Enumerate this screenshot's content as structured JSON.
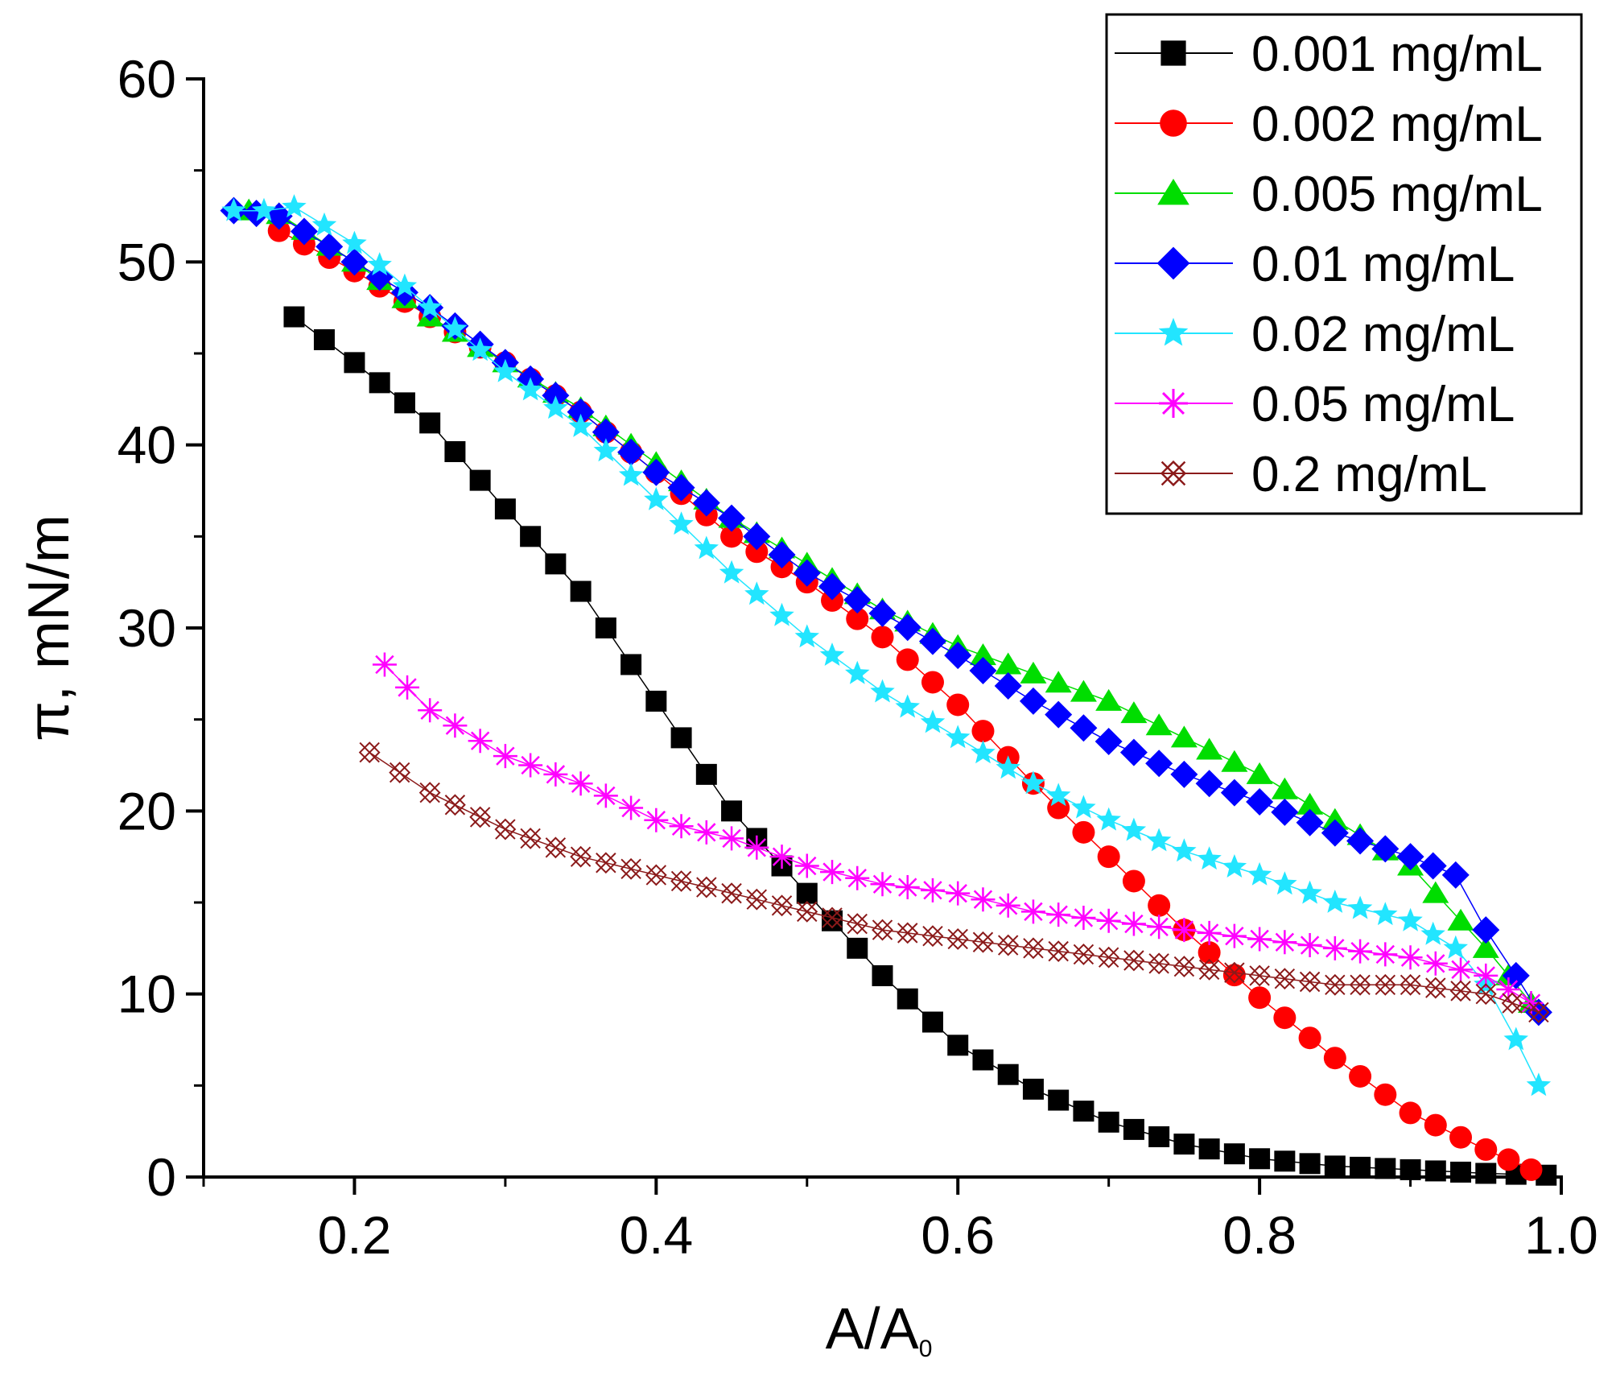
{
  "chart_data": {
    "type": "scatter",
    "title": "",
    "xlabel": "A/A",
    "xlabel_subscript": "0",
    "ylabel": "π, mN/m",
    "xlim": [
      0.1,
      1.0
    ],
    "ylim": [
      0,
      60
    ],
    "xticks": [
      0.2,
      0.4,
      0.6,
      0.8,
      1.0
    ],
    "xtick_labels": [
      "0.2",
      "0.4",
      "0.6",
      "0.8",
      "1.0"
    ],
    "yticks": [
      0,
      10,
      20,
      30,
      40,
      50,
      60
    ],
    "ytick_labels": [
      "0",
      "10",
      "20",
      "30",
      "40",
      "50",
      "60"
    ],
    "grid": false,
    "legend_position": "top-right",
    "series": [
      {
        "name": "0.001 mg/mL",
        "color": "#000000",
        "marker": "square",
        "points": [
          [
            0.16,
            47.0
          ],
          [
            0.2,
            44.5
          ],
          [
            0.25,
            41.2
          ],
          [
            0.3,
            36.5
          ],
          [
            0.35,
            32.0
          ],
          [
            0.4,
            26.0
          ],
          [
            0.45,
            20.0
          ],
          [
            0.5,
            15.5
          ],
          [
            0.55,
            11.0
          ],
          [
            0.6,
            7.2
          ],
          [
            0.65,
            4.8
          ],
          [
            0.7,
            3.0
          ],
          [
            0.75,
            1.8
          ],
          [
            0.8,
            1.0
          ],
          [
            0.85,
            0.6
          ],
          [
            0.9,
            0.4
          ],
          [
            0.95,
            0.2
          ],
          [
            0.99,
            0.1
          ]
        ]
      },
      {
        "name": "0.002 mg/mL",
        "color": "#ff0000",
        "marker": "circle",
        "points": [
          [
            0.15,
            51.7
          ],
          [
            0.2,
            49.5
          ],
          [
            0.25,
            47.0
          ],
          [
            0.3,
            44.5
          ],
          [
            0.35,
            41.8
          ],
          [
            0.4,
            38.5
          ],
          [
            0.45,
            35.0
          ],
          [
            0.5,
            32.5
          ],
          [
            0.55,
            29.5
          ],
          [
            0.6,
            25.8
          ],
          [
            0.65,
            21.5
          ],
          [
            0.7,
            17.5
          ],
          [
            0.75,
            13.5
          ],
          [
            0.8,
            9.8
          ],
          [
            0.85,
            6.5
          ],
          [
            0.9,
            3.5
          ],
          [
            0.95,
            1.5
          ],
          [
            0.98,
            0.4
          ]
        ]
      },
      {
        "name": "0.005 mg/mL",
        "color": "#00dd00",
        "marker": "triangle",
        "points": [
          [
            0.13,
            52.8
          ],
          [
            0.15,
            52.6
          ],
          [
            0.2,
            50.0
          ],
          [
            0.25,
            47.0
          ],
          [
            0.3,
            44.5
          ],
          [
            0.35,
            42.0
          ],
          [
            0.4,
            39.0
          ],
          [
            0.45,
            36.0
          ],
          [
            0.5,
            33.5
          ],
          [
            0.55,
            31.0
          ],
          [
            0.6,
            29.0
          ],
          [
            0.65,
            27.5
          ],
          [
            0.7,
            26.0
          ],
          [
            0.75,
            24.0
          ],
          [
            0.8,
            22.0
          ],
          [
            0.85,
            19.5
          ],
          [
            0.9,
            17.0
          ],
          [
            0.95,
            12.5
          ],
          [
            0.98,
            9.5
          ]
        ]
      },
      {
        "name": "0.01 mg/mL",
        "color": "#0000ff",
        "marker": "diamond",
        "points": [
          [
            0.12,
            52.8
          ],
          [
            0.15,
            52.5
          ],
          [
            0.2,
            50.0
          ],
          [
            0.25,
            47.5
          ],
          [
            0.3,
            44.5
          ],
          [
            0.35,
            41.8
          ],
          [
            0.4,
            38.5
          ],
          [
            0.45,
            36.0
          ],
          [
            0.5,
            33.0
          ],
          [
            0.55,
            30.8
          ],
          [
            0.6,
            28.5
          ],
          [
            0.65,
            26.0
          ],
          [
            0.7,
            23.8
          ],
          [
            0.75,
            22.0
          ],
          [
            0.8,
            20.5
          ],
          [
            0.85,
            18.8
          ],
          [
            0.9,
            17.5
          ],
          [
            0.93,
            16.5
          ],
          [
            0.95,
            13.5
          ],
          [
            0.97,
            11.0
          ],
          [
            0.985,
            9.0
          ]
        ]
      },
      {
        "name": "0.02 mg/mL",
        "color": "#22e5ff",
        "marker": "star",
        "points": [
          [
            0.12,
            52.8
          ],
          [
            0.14,
            52.8
          ],
          [
            0.16,
            53.0
          ],
          [
            0.2,
            51.0
          ],
          [
            0.25,
            47.5
          ],
          [
            0.3,
            44.0
          ],
          [
            0.35,
            41.0
          ],
          [
            0.4,
            37.0
          ],
          [
            0.45,
            33.0
          ],
          [
            0.5,
            29.5
          ],
          [
            0.55,
            26.5
          ],
          [
            0.6,
            24.0
          ],
          [
            0.65,
            21.5
          ],
          [
            0.7,
            19.5
          ],
          [
            0.75,
            17.8
          ],
          [
            0.8,
            16.5
          ],
          [
            0.85,
            15.0
          ],
          [
            0.9,
            14.0
          ],
          [
            0.93,
            12.5
          ],
          [
            0.95,
            10.5
          ],
          [
            0.97,
            7.5
          ],
          [
            0.985,
            5.0
          ]
        ]
      },
      {
        "name": "0.05 mg/mL",
        "color": "#ff00ff",
        "marker": "asterisk",
        "points": [
          [
            0.22,
            28.0
          ],
          [
            0.25,
            25.5
          ],
          [
            0.3,
            23.0
          ],
          [
            0.35,
            21.5
          ],
          [
            0.4,
            19.5
          ],
          [
            0.45,
            18.5
          ],
          [
            0.5,
            17.0
          ],
          [
            0.55,
            16.0
          ],
          [
            0.6,
            15.5
          ],
          [
            0.65,
            14.5
          ],
          [
            0.7,
            14.0
          ],
          [
            0.75,
            13.5
          ],
          [
            0.8,
            13.0
          ],
          [
            0.85,
            12.5
          ],
          [
            0.9,
            12.0
          ],
          [
            0.95,
            11.0
          ],
          [
            0.98,
            9.5
          ]
        ]
      },
      {
        "name": "0.2 mg/mL",
        "color": "#8b1a1a",
        "marker": "xcross",
        "points": [
          [
            0.21,
            23.2
          ],
          [
            0.25,
            21.0
          ],
          [
            0.3,
            19.0
          ],
          [
            0.35,
            17.5
          ],
          [
            0.4,
            16.5
          ],
          [
            0.45,
            15.5
          ],
          [
            0.5,
            14.5
          ],
          [
            0.55,
            13.5
          ],
          [
            0.6,
            13.0
          ],
          [
            0.65,
            12.5
          ],
          [
            0.7,
            12.0
          ],
          [
            0.75,
            11.5
          ],
          [
            0.8,
            11.0
          ],
          [
            0.85,
            10.5
          ],
          [
            0.9,
            10.5
          ],
          [
            0.95,
            10.0
          ],
          [
            0.985,
            9.0
          ]
        ]
      }
    ]
  }
}
